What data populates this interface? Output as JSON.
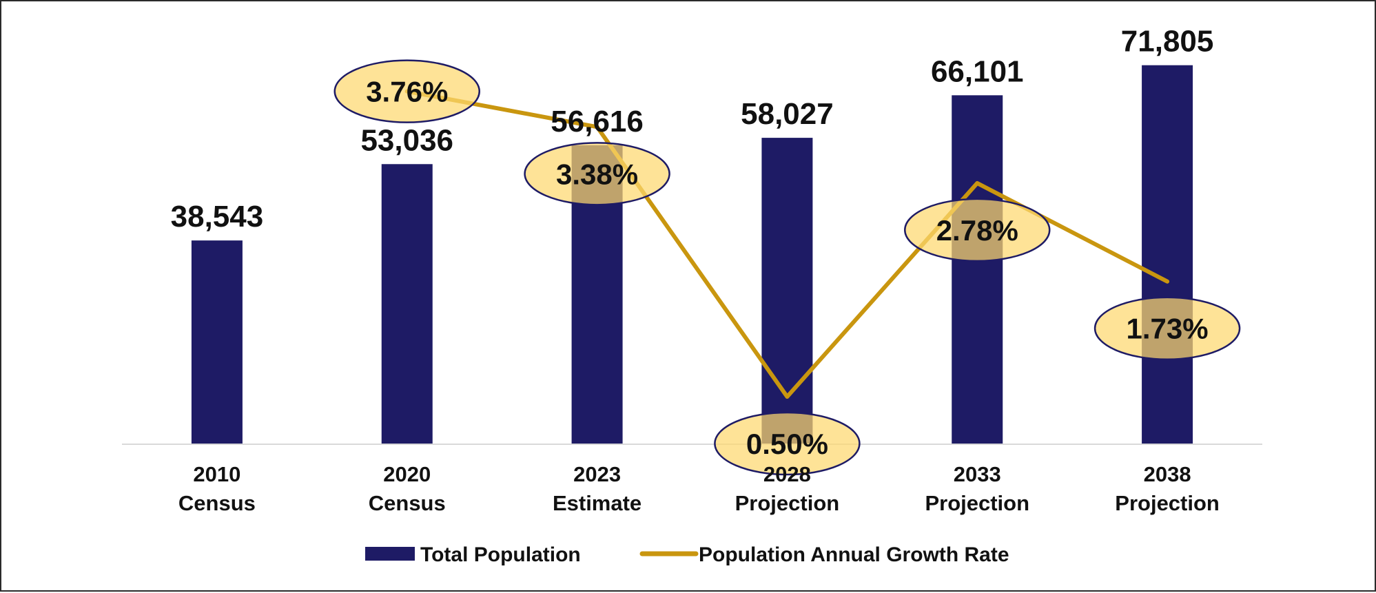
{
  "chart_data": {
    "type": "bar",
    "categories": [
      [
        "2010",
        "Census"
      ],
      [
        "2020",
        "Census"
      ],
      [
        "2023",
        "Estimate"
      ],
      [
        "2028",
        "Projection"
      ],
      [
        "2033",
        "Projection"
      ],
      [
        "2038",
        "Projection"
      ]
    ],
    "series": [
      {
        "name": "Total Population",
        "type": "bar",
        "values": [
          38543,
          53036,
          56616,
          58027,
          66101,
          71805
        ],
        "labels": [
          "38,543",
          "53,036",
          "56,616",
          "58,027",
          "66,101",
          "71,805"
        ],
        "color": "#1e1b65"
      },
      {
        "name": "Population Annual Growth Rate",
        "type": "line",
        "values": [
          null,
          3.76,
          3.38,
          0.5,
          2.78,
          1.73
        ],
        "labels": [
          null,
          "3.76%",
          "3.38%",
          "0.50%",
          "2.78%",
          "1.73%"
        ],
        "color": "#c9960f",
        "label_background": "#fdd86f",
        "label_border": "#1e1b65"
      }
    ],
    "y_primary_range": [
      0,
      80000
    ],
    "y_secondary_range": [
      0,
      4.5
    ],
    "grid": false,
    "legend_position": "bottom",
    "title": "",
    "xlabel": "",
    "ylabel": ""
  }
}
